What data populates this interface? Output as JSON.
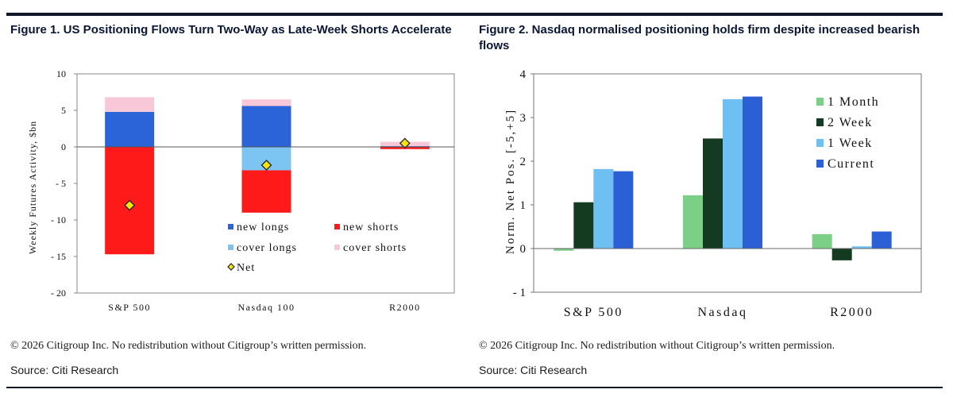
{
  "figures": [
    {
      "title": "Figure 1. US Positioning Flows Turn Two-Way as Late-Week Shorts Accelerate",
      "copyright": "© 2026 Citigroup Inc. No redistribution without Citigroup’s written permission.",
      "source": "Source: Citi Research"
    },
    {
      "title": "Figure 2. Nasdaq normalised positioning holds firm despite increased bearish flows",
      "copyright": "© 2026 Citigroup Inc. No redistribution without Citigroup’s written permission.",
      "source": "Source: Citi Research"
    }
  ],
  "chart_data": [
    {
      "type": "bar",
      "stacked": true,
      "categories": [
        "S&P 500",
        "Nasdaq 100",
        "R2000"
      ],
      "ylabel": "Weekly Futures Activity, $bn",
      "ylim": [
        -20,
        10
      ],
      "yticks": [
        10,
        5,
        0,
        -5,
        -10,
        -15,
        -20
      ],
      "ytick_labels": [
        "10",
        "5",
        "0",
        "- 5",
        "- 10",
        "- 15",
        "- 20"
      ],
      "grid": false,
      "legend_position": "bottom-right-inside",
      "series": [
        {
          "name": "new longs",
          "color": "#2b63d9",
          "values": [
            4.8,
            5.6,
            0.1
          ]
        },
        {
          "name": "cover longs",
          "color": "#7cc4f2",
          "values": [
            0,
            -3.2,
            0
          ]
        },
        {
          "name": "new shorts",
          "color": "#ff1a1a",
          "values": [
            -14.7,
            -5.8,
            -0.3
          ]
        },
        {
          "name": "cover shorts",
          "color": "#f8c8d8",
          "values": [
            2.0,
            0.9,
            0.6
          ]
        }
      ],
      "net": {
        "name": "Net",
        "color": "#f5e60a",
        "values": [
          -8.0,
          -2.5,
          0.5
        ]
      },
      "legend": [
        "new longs",
        "new shorts",
        "cover longs",
        "cover shorts",
        "Net"
      ]
    },
    {
      "type": "bar",
      "categories": [
        "S&P 500",
        "Nasdaq",
        "R2000"
      ],
      "ylabel": "Norm. Net Pos. [-5,+5]",
      "ylim": [
        -1,
        4
      ],
      "yticks": [
        4,
        3,
        2,
        1,
        0,
        -1
      ],
      "ytick_labels": [
        "4",
        "3",
        "2",
        "1",
        "0",
        "- 1"
      ],
      "grid": false,
      "legend_position": "top-right",
      "series": [
        {
          "name": "1 Month",
          "color": "#7ccf86",
          "values": [
            -0.05,
            1.22,
            0.33
          ]
        },
        {
          "name": "2 Week",
          "color": "#143a22",
          "values": [
            1.06,
            2.52,
            -0.27
          ]
        },
        {
          "name": "1 Week",
          "color": "#6ebff2",
          "values": [
            1.82,
            3.42,
            0.05
          ]
        },
        {
          "name": "Current",
          "color": "#2a5fd6",
          "values": [
            1.77,
            3.48,
            0.39
          ]
        }
      ]
    }
  ]
}
